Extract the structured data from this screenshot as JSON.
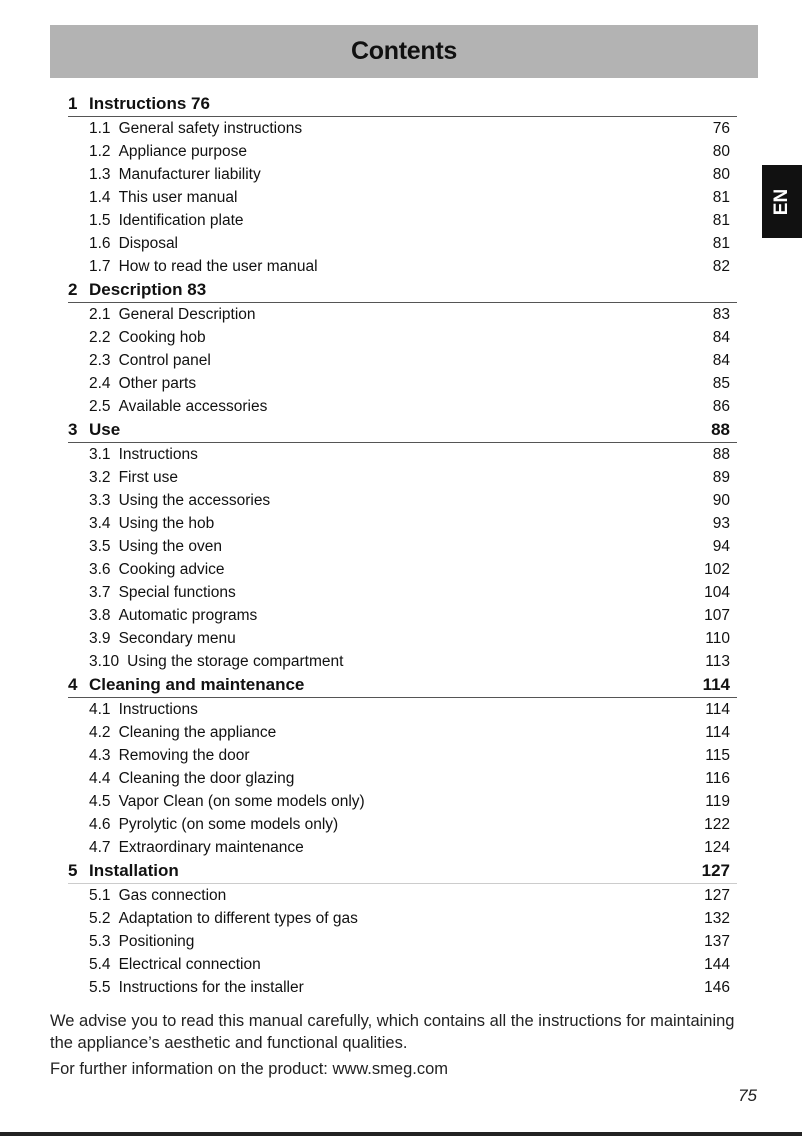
{
  "header": {
    "title": "Contents"
  },
  "language_tab": "EN",
  "sections": [
    {
      "num": "1",
      "title": "Instructions 76",
      "page": "",
      "items": [
        {
          "num": "1.1",
          "title": "General safety instructions",
          "page": "76"
        },
        {
          "num": "1.2",
          "title": "Appliance purpose",
          "page": "80"
        },
        {
          "num": "1.3",
          "title": "Manufacturer liability",
          "page": "80"
        },
        {
          "num": "1.4",
          "title": "This user manual",
          "page": "81"
        },
        {
          "num": "1.5",
          "title": "Identification plate",
          "page": "81"
        },
        {
          "num": "1.6",
          "title": "Disposal",
          "page": "81"
        },
        {
          "num": "1.7",
          "title": "How to read the user manual",
          "page": "82"
        }
      ]
    },
    {
      "num": "2",
      "title": "Description 83",
      "page": "",
      "items": [
        {
          "num": "2.1",
          "title": "General Description",
          "page": "83"
        },
        {
          "num": "2.2",
          "title": "Cooking hob",
          "page": "84"
        },
        {
          "num": "2.3",
          "title": "Control panel",
          "page": "84"
        },
        {
          "num": "2.4",
          "title": "Other parts",
          "page": "85"
        },
        {
          "num": "2.5",
          "title": "Available accessories",
          "page": "86"
        }
      ]
    },
    {
      "num": "3",
      "title": "Use",
      "page": "88",
      "items": [
        {
          "num": "3.1",
          "title": "Instructions",
          "page": "88"
        },
        {
          "num": "3.2",
          "title": "First use",
          "page": "89"
        },
        {
          "num": "3.3",
          "title": "Using the accessories",
          "page": "90"
        },
        {
          "num": "3.4",
          "title": "Using the hob",
          "page": "93"
        },
        {
          "num": "3.5",
          "title": "Using the oven",
          "page": "94"
        },
        {
          "num": "3.6",
          "title": "Cooking advice",
          "page": "102"
        },
        {
          "num": "3.7",
          "title": "Special functions",
          "page": "104"
        },
        {
          "num": "3.8",
          "title": "Automatic programs",
          "page": "107"
        },
        {
          "num": "3.9",
          "title": "Secondary menu",
          "page": "110"
        },
        {
          "num": "3.10",
          "title": "Using the storage compartment",
          "page": "113"
        }
      ]
    },
    {
      "num": "4",
      "title": "Cleaning and maintenance",
      "page": "114",
      "items": [
        {
          "num": "4.1",
          "title": "Instructions",
          "page": "114"
        },
        {
          "num": "4.2",
          "title": "Cleaning the appliance",
          "page": "114"
        },
        {
          "num": "4.3",
          "title": "Removing the door",
          "page": "115"
        },
        {
          "num": "4.4",
          "title": "Cleaning the door glazing",
          "page": "116"
        },
        {
          "num": "4.5",
          "title": "Vapor Clean (on some models only)",
          "page": "119"
        },
        {
          "num": "4.6",
          "title": "Pyrolytic (on some models only)",
          "page": "122"
        },
        {
          "num": "4.7",
          "title": "Extraordinary maintenance",
          "page": "124"
        }
      ]
    },
    {
      "num": "5",
      "title": "Installation",
      "page": "127",
      "items": [
        {
          "num": "5.1",
          "title": "Gas connection",
          "page": "127"
        },
        {
          "num": "5.2",
          "title": "Adaptation to different types of gas",
          "page": "132"
        },
        {
          "num": "5.3",
          "title": "Positioning",
          "page": "137"
        },
        {
          "num": "5.4",
          "title": "Electrical connection",
          "page": "144"
        },
        {
          "num": "5.5",
          "title": "Instructions for the installer",
          "page": "146"
        }
      ]
    }
  ],
  "footer": {
    "advice": "We advise you to read this manual carefully, which contains all the instructions for maintaining the appliance’s aesthetic and functional qualities.",
    "more_info": "For further information on the product: www.smeg.com",
    "page_number": "75"
  }
}
